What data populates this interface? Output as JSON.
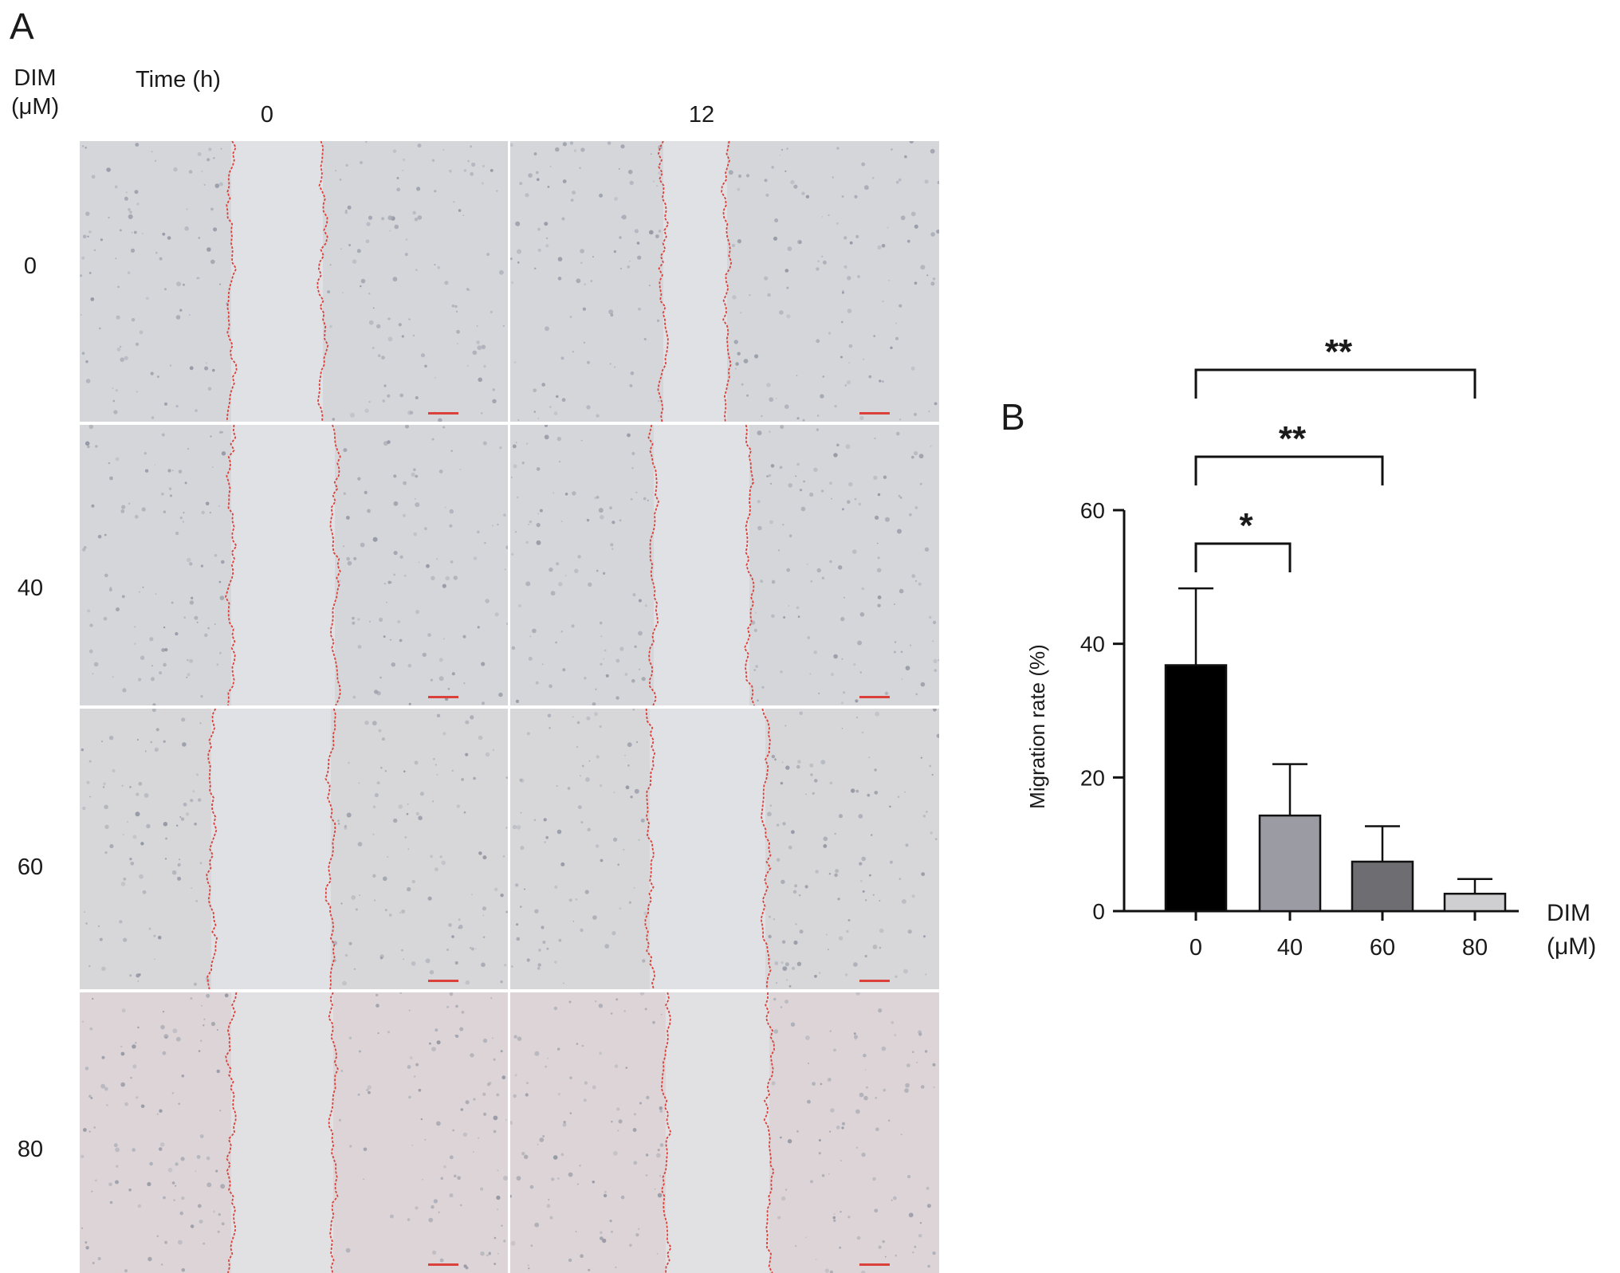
{
  "panel_a": {
    "letter": "A",
    "dim_label_line1": "DIM",
    "dim_label_line2": "(μM)",
    "time_label": "Time (h)",
    "time_columns": [
      "0",
      "12"
    ],
    "dim_rows": [
      "0",
      "40",
      "60",
      "80"
    ],
    "colors": {
      "wound_edge": "#d9413a",
      "scale_bar": "#d9413a"
    }
  },
  "panel_b": {
    "letter": "B"
  },
  "chart_data": {
    "type": "bar",
    "title": "",
    "ylabel": "Migration rate (%)",
    "xlabel_line1": "DIM",
    "xlabel_line2": "(μM)",
    "categories": [
      "0",
      "40",
      "60",
      "80"
    ],
    "values": [
      36.8,
      14.3,
      7.4,
      2.6
    ],
    "error_upper": [
      48.3,
      22.0,
      12.7,
      4.8
    ],
    "ylim": [
      0,
      60
    ],
    "yticks": [
      0,
      20,
      40,
      60
    ],
    "bar_colors": [
      "#000000",
      "#9b9ba3",
      "#6e6e72",
      "#cfcfd1"
    ],
    "significance": [
      {
        "from": 0,
        "to": 1,
        "label": "*"
      },
      {
        "from": 0,
        "to": 2,
        "label": "**"
      },
      {
        "from": 0,
        "to": 3,
        "label": "**"
      }
    ]
  }
}
